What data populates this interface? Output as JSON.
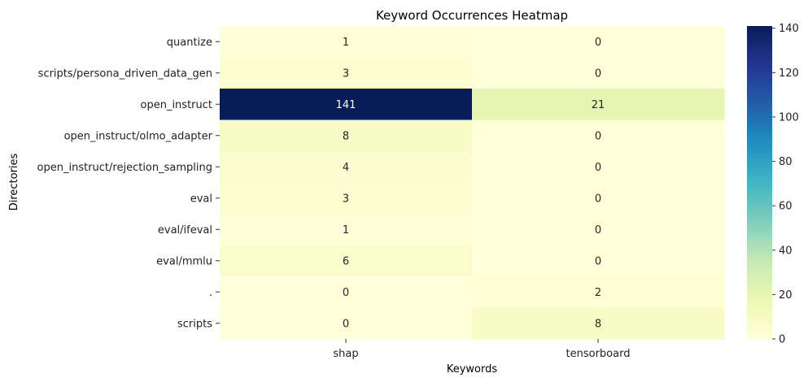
{
  "chart_data": {
    "type": "heatmap",
    "title": "Keyword Occurrences Heatmap",
    "xlabel": "Keywords",
    "ylabel": "Directories",
    "columns": [
      "shap",
      "tensorboard"
    ],
    "rows": [
      "quantize",
      "scripts/persona_driven_data_gen",
      "open_instruct",
      "open_instruct/olmo_adapter",
      "open_instruct/rejection_sampling",
      "eval",
      "eval/ifeval",
      "eval/mmlu",
      ".",
      "scripts"
    ],
    "values": [
      [
        1,
        0
      ],
      [
        3,
        0
      ],
      [
        141,
        21
      ],
      [
        8,
        0
      ],
      [
        4,
        0
      ],
      [
        3,
        0
      ],
      [
        1,
        0
      ],
      [
        6,
        0
      ],
      [
        0,
        2
      ],
      [
        0,
        8
      ]
    ],
    "colorscale": "YlGnBu",
    "vmin": 0,
    "vmax": 141,
    "colorbar_ticks": [
      0,
      20,
      40,
      60,
      80,
      100,
      120,
      140
    ],
    "annotations": true,
    "grid": false
  }
}
